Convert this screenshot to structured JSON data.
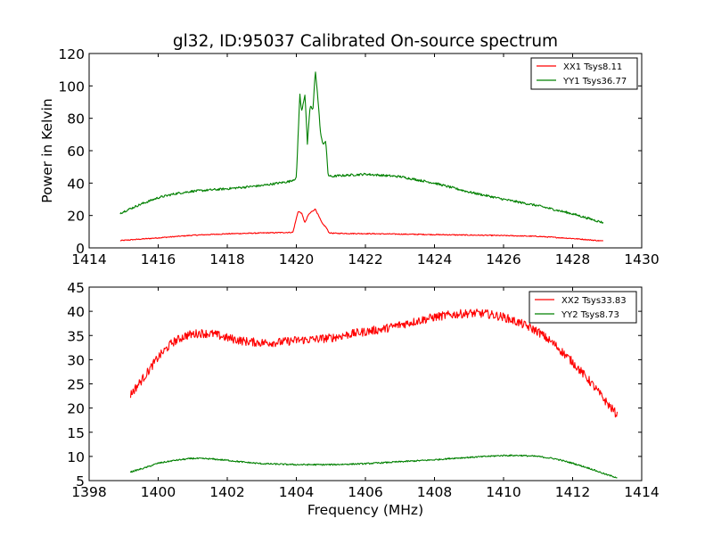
{
  "chart_data": [
    {
      "type": "line",
      "title": "gl32, ID:95037 Calibrated On-source spectrum",
      "xlabel": "",
      "ylabel": "Power in Kelvin",
      "xlim": [
        1414,
        1430
      ],
      "ylim": [
        0,
        120
      ],
      "xticks": [
        "1414",
        "1416",
        "1418",
        "1420",
        "1422",
        "1424",
        "1426",
        "1428",
        "1430"
      ],
      "yticks": [
        "0",
        "20",
        "40",
        "60",
        "80",
        "100",
        "120"
      ],
      "legend_position": "top-right",
      "grid": false,
      "series": [
        {
          "name": "XX1 Tsys8.11",
          "color": "#ff0000",
          "noise": 0.3,
          "x": [
            1414.9,
            1416,
            1417,
            1418,
            1419,
            1419.9,
            1420.05,
            1420.15,
            1420.25,
            1420.35,
            1420.45,
            1420.55,
            1420.65,
            1420.75,
            1420.85,
            1420.95,
            1421.1,
            1422,
            1423,
            1424,
            1425,
            1426,
            1427,
            1428,
            1428.9
          ],
          "y": [
            4.5,
            6.2,
            7.8,
            8.7,
            9.2,
            9.6,
            22.5,
            21.5,
            15.5,
            20.5,
            22.5,
            24.0,
            19.5,
            15.0,
            13.0,
            9.3,
            9.0,
            8.8,
            8.5,
            8.2,
            7.9,
            7.6,
            7.1,
            5.8,
            4.2
          ]
        },
        {
          "name": "YY1 Tsys36.77",
          "color": "#008000",
          "noise": 0.7,
          "x": [
            1414.9,
            1415.5,
            1416,
            1416.5,
            1417,
            1418,
            1419,
            1419.8,
            1420.0,
            1420.1,
            1420.15,
            1420.25,
            1420.32,
            1420.4,
            1420.48,
            1420.55,
            1420.62,
            1420.7,
            1420.76,
            1420.85,
            1420.92,
            1421.0,
            1421.2,
            1422,
            1423,
            1424,
            1425,
            1426,
            1427,
            1428,
            1428.9
          ],
          "y": [
            21.5,
            27.0,
            31.0,
            33.5,
            35.0,
            36.5,
            38.5,
            41.0,
            43.0,
            95.0,
            84.0,
            95.0,
            64.0,
            88.0,
            85.0,
            110.0,
            93.0,
            71.0,
            64.0,
            66.0,
            45.0,
            44.0,
            44.5,
            45.5,
            44.0,
            40.0,
            34.5,
            30.0,
            26.0,
            21.0,
            15.5
          ]
        }
      ]
    },
    {
      "type": "line",
      "title": "",
      "xlabel": "Frequency (MHz)",
      "ylabel": "",
      "xlim": [
        1398,
        1414
      ],
      "ylim": [
        5,
        45
      ],
      "xticks": [
        "1398",
        "1400",
        "1402",
        "1404",
        "1406",
        "1408",
        "1410",
        "1412",
        "1414"
      ],
      "yticks": [
        "5",
        "10",
        "15",
        "20",
        "25",
        "30",
        "35",
        "40",
        "45"
      ],
      "legend_position": "top-right",
      "grid": false,
      "series": [
        {
          "name": "XX2 Tsys33.83",
          "color": "#ff0000",
          "noise": 0.9,
          "x": [
            1399.2,
            1399.6,
            1400.0,
            1400.4,
            1400.8,
            1401.2,
            1401.6,
            1402.0,
            1402.5,
            1403.0,
            1403.5,
            1404.0,
            1404.5,
            1405.0,
            1405.5,
            1406.0,
            1406.5,
            1407.0,
            1407.5,
            1408.0,
            1408.5,
            1409.0,
            1409.5,
            1410.0,
            1410.5,
            1411.0,
            1411.5,
            1412.0,
            1412.5,
            1413.0,
            1413.3
          ],
          "y": [
            22.8,
            26.5,
            30.5,
            33.5,
            35.0,
            35.5,
            35.3,
            34.5,
            33.8,
            33.5,
            33.6,
            34.0,
            34.2,
            34.5,
            35.2,
            35.8,
            36.3,
            37.2,
            38.0,
            38.8,
            39.3,
            39.6,
            39.5,
            38.8,
            37.5,
            35.8,
            33.0,
            29.5,
            25.5,
            21.0,
            18.5
          ]
        },
        {
          "name": "YY2 Tsys8.73",
          "color": "#008000",
          "noise": 0.15,
          "x": [
            1399.2,
            1399.6,
            1400.0,
            1400.5,
            1401.0,
            1401.5,
            1402.0,
            1402.5,
            1403.0,
            1404.0,
            1405.0,
            1406.0,
            1407.0,
            1408.0,
            1408.5,
            1409.0,
            1409.5,
            1410.0,
            1410.5,
            1411.0,
            1411.5,
            1412.0,
            1412.5,
            1413.0,
            1413.3
          ],
          "y": [
            6.8,
            7.6,
            8.6,
            9.2,
            9.6,
            9.5,
            9.2,
            8.8,
            8.5,
            8.3,
            8.3,
            8.5,
            8.9,
            9.3,
            9.6,
            9.8,
            10.0,
            10.2,
            10.2,
            10.0,
            9.5,
            8.6,
            7.5,
            6.2,
            5.6
          ]
        }
      ]
    }
  ]
}
